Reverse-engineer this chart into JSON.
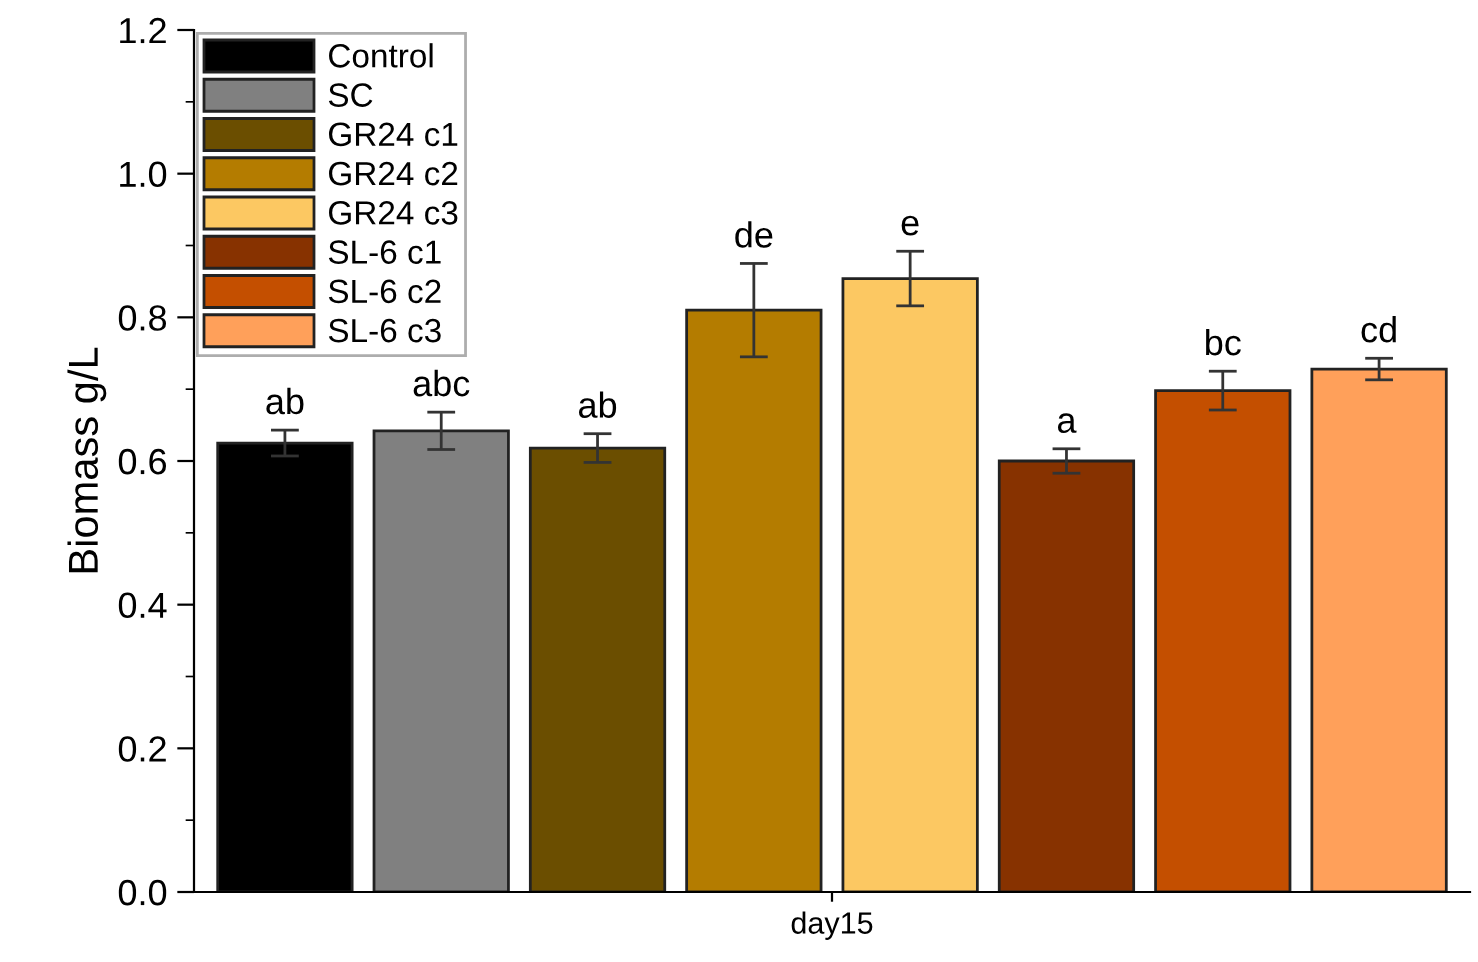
{
  "chart_data": {
    "type": "bar",
    "ylabel": "Biomass g/L",
    "categories": [
      "day15"
    ],
    "series": [
      {
        "name": "Control",
        "color": "#000000",
        "values": [
          0.625
        ],
        "errors": [
          0.018
        ]
      },
      {
        "name": "SC",
        "color": "#808080",
        "values": [
          0.642
        ],
        "errors": [
          0.026
        ]
      },
      {
        "name": "GR24 c1",
        "color": "#6b4e00",
        "values": [
          0.618
        ],
        "errors": [
          0.02
        ]
      },
      {
        "name": "GR24 c2",
        "color": "#b47c00",
        "values": [
          0.81
        ],
        "errors": [
          0.065
        ]
      },
      {
        "name": "GR24 c3",
        "color": "#fcc862",
        "values": [
          0.854
        ],
        "errors": [
          0.038
        ]
      },
      {
        "name": "SL-6 c1",
        "color": "#873200",
        "values": [
          0.6
        ],
        "errors": [
          0.017
        ]
      },
      {
        "name": "SL-6 c2",
        "color": "#c44f00",
        "values": [
          0.698
        ],
        "errors": [
          0.027
        ]
      },
      {
        "name": "SL-6 c3",
        "color": "#ffa05a",
        "values": [
          0.728
        ],
        "errors": [
          0.015
        ]
      }
    ],
    "annotations": [
      "ab",
      "abc",
      "ab",
      "de",
      "e",
      "a",
      "bc",
      "cd"
    ],
    "ylim": [
      0,
      1.2
    ],
    "yticks": [
      {
        "value": 0,
        "label": "0.0"
      },
      0.2,
      0.4,
      0.6,
      0.8,
      {
        "value": 1,
        "label": "1.0"
      },
      1.2
    ],
    "grid": false,
    "legend": "top left"
  }
}
